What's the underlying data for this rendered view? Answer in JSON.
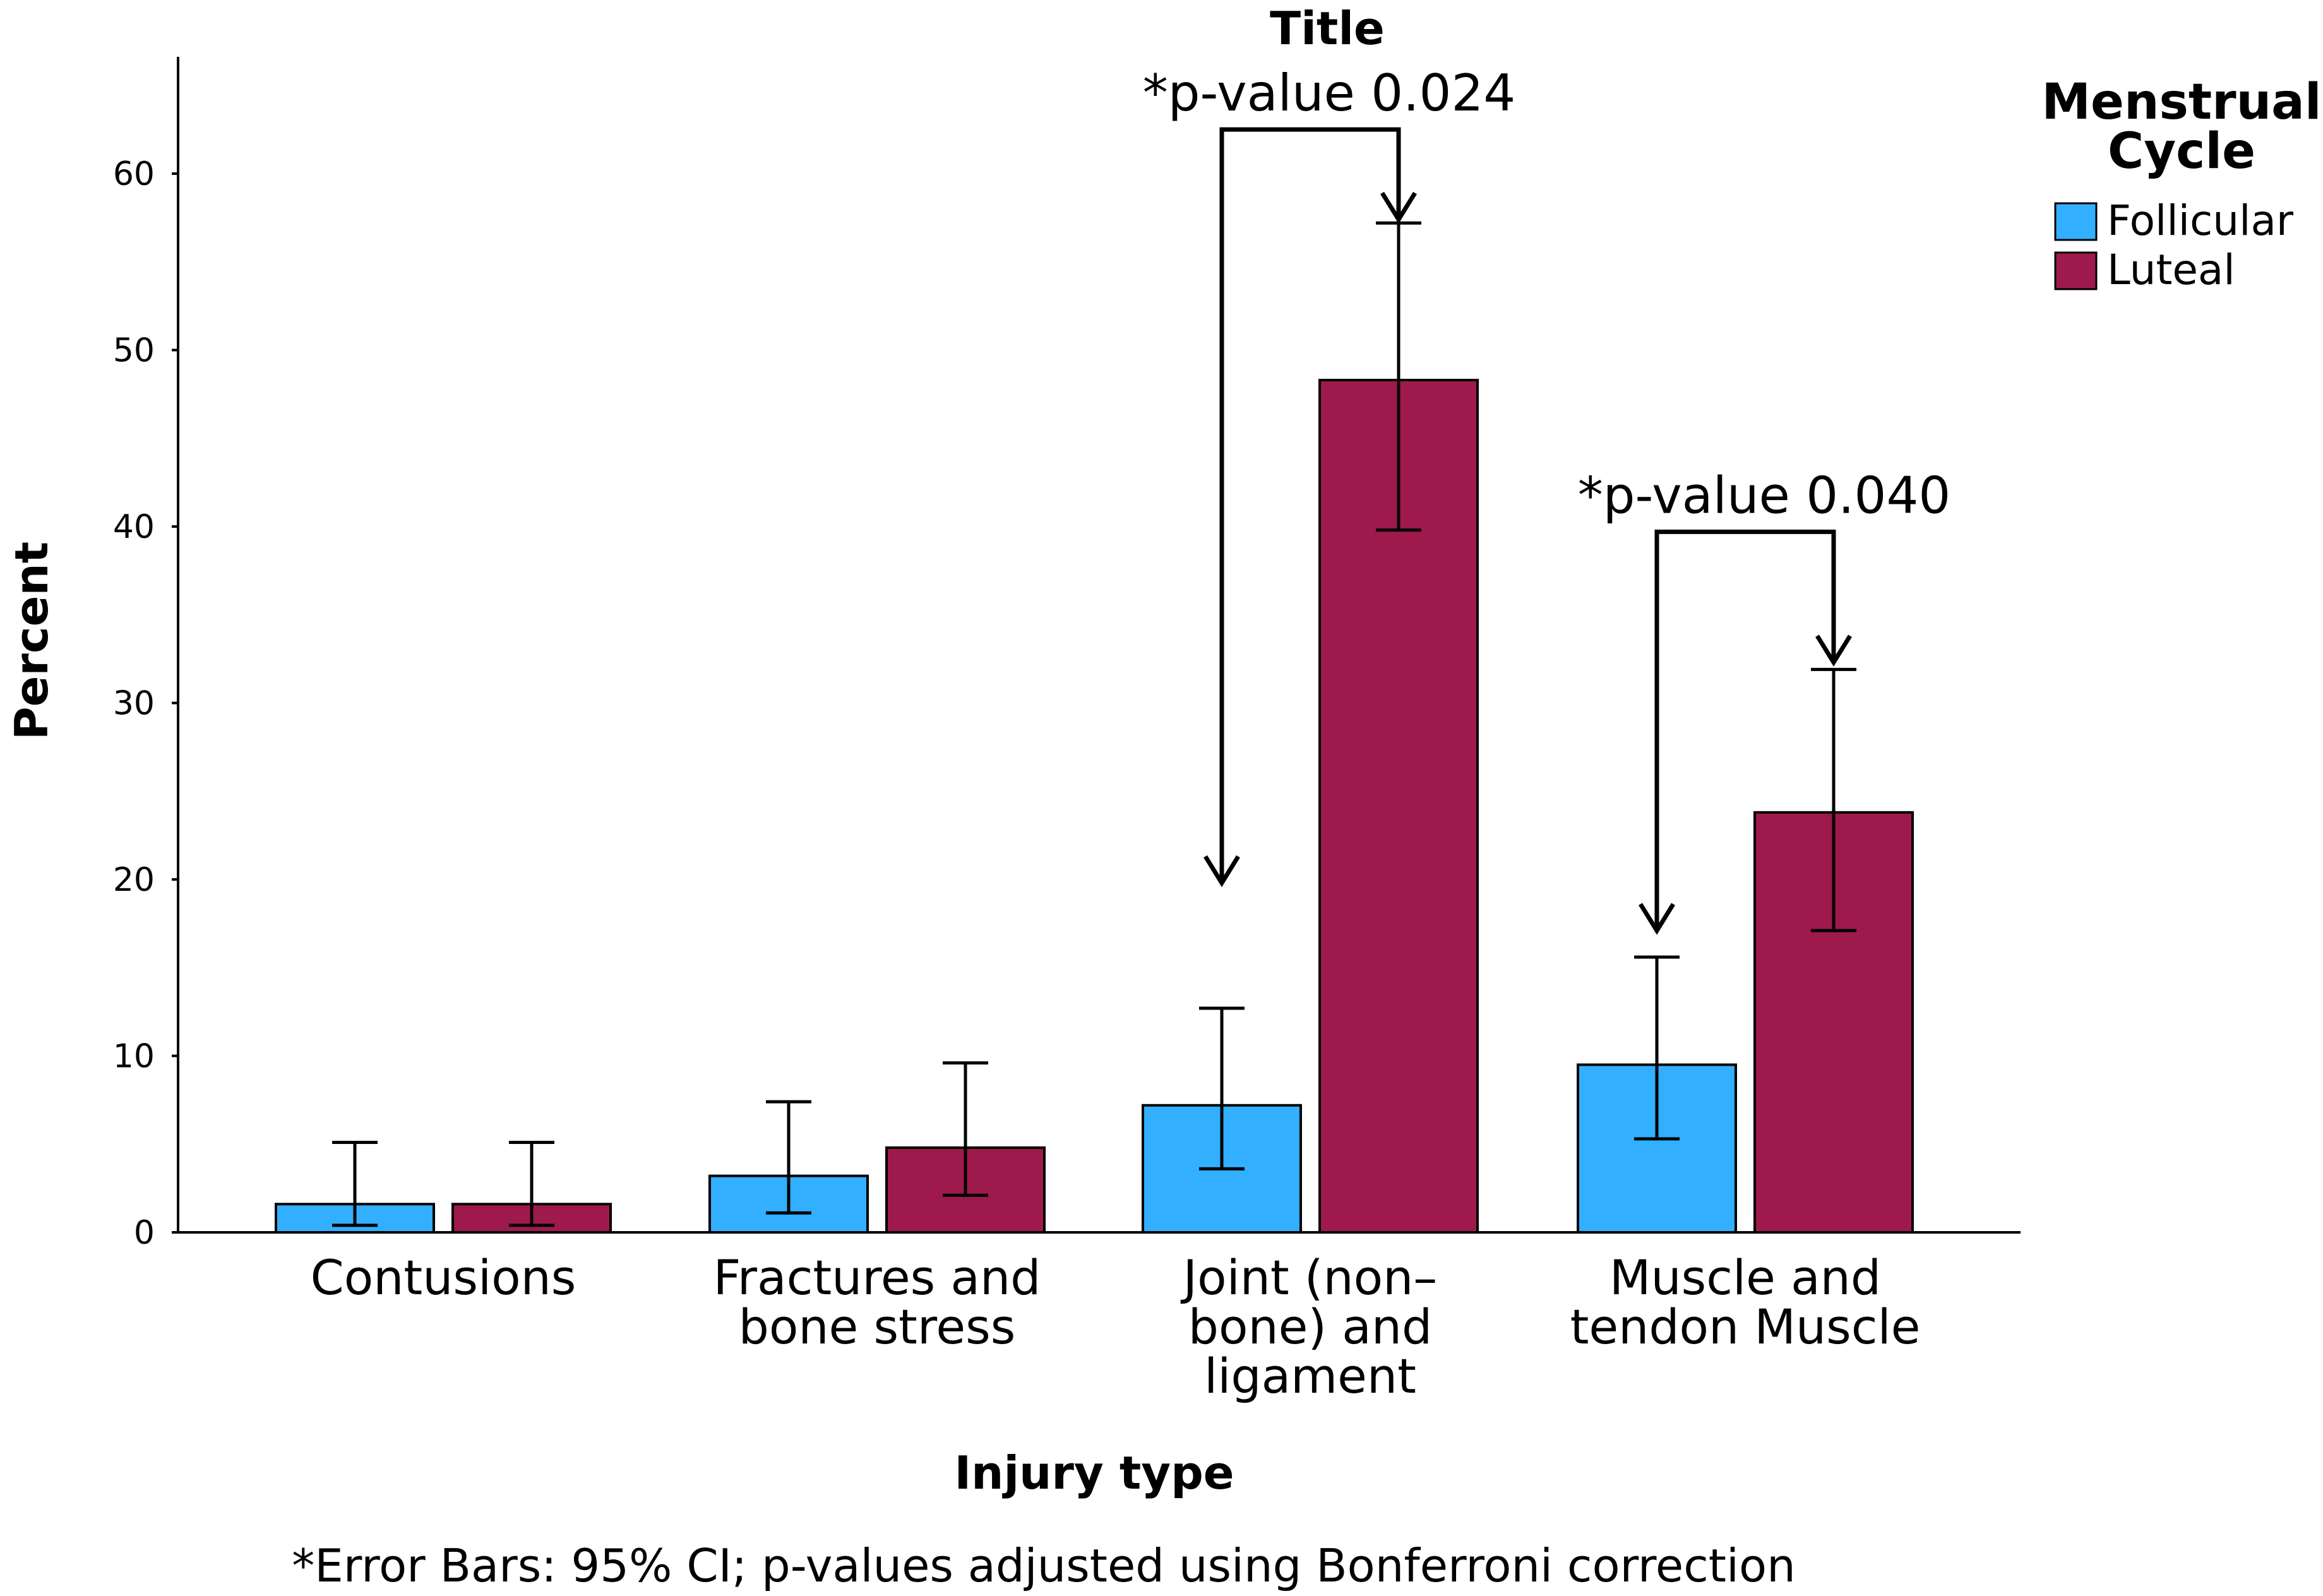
{
  "chart_data": {
    "type": "bar",
    "title": "Title",
    "xlabel": "Injury type",
    "ylabel": "Percent",
    "ylim": [
      0,
      66
    ],
    "yticks": [
      0,
      10,
      20,
      30,
      40,
      50,
      60
    ],
    "categories": [
      [
        "Contusions"
      ],
      [
        "Fractures and",
        "bone stress"
      ],
      [
        "Joint (non–",
        "bone) and",
        "ligament"
      ],
      [
        "Muscle and",
        "tendon Muscle"
      ]
    ],
    "legend": {
      "title_lines": [
        "Menstrual",
        "Cycle"
      ],
      "position": "top-right"
    },
    "series": [
      {
        "name": "Follicular",
        "color": "#33AFFF",
        "values": [
          1.6,
          3.2,
          7.2,
          9.5
        ],
        "ci_low": [
          0.4,
          1.1,
          3.6,
          5.3
        ],
        "ci_high": [
          5.1,
          7.4,
          12.7,
          15.6
        ]
      },
      {
        "name": "Luteal",
        "color": "#9E1A4D",
        "values": [
          1.6,
          4.8,
          48.3,
          23.8
        ],
        "ci_low": [
          0.4,
          2.1,
          39.8,
          17.1
        ],
        "ci_high": [
          5.1,
          9.6,
          57.2,
          31.9
        ]
      }
    ],
    "annotations": [
      {
        "text": "*p-value 0.024",
        "category_index": 2,
        "bracket_y": 62.5,
        "left_arrow_to": 19.8,
        "right_arrow_to": 57.4
      },
      {
        "text": "*p-value 0.040",
        "category_index": 3,
        "bracket_y": 39.7,
        "left_arrow_to": 17.1,
        "right_arrow_to": 32.3
      }
    ],
    "footnote": "*Error Bars: 95% CI; p-values adjusted using Bonferroni correction"
  }
}
